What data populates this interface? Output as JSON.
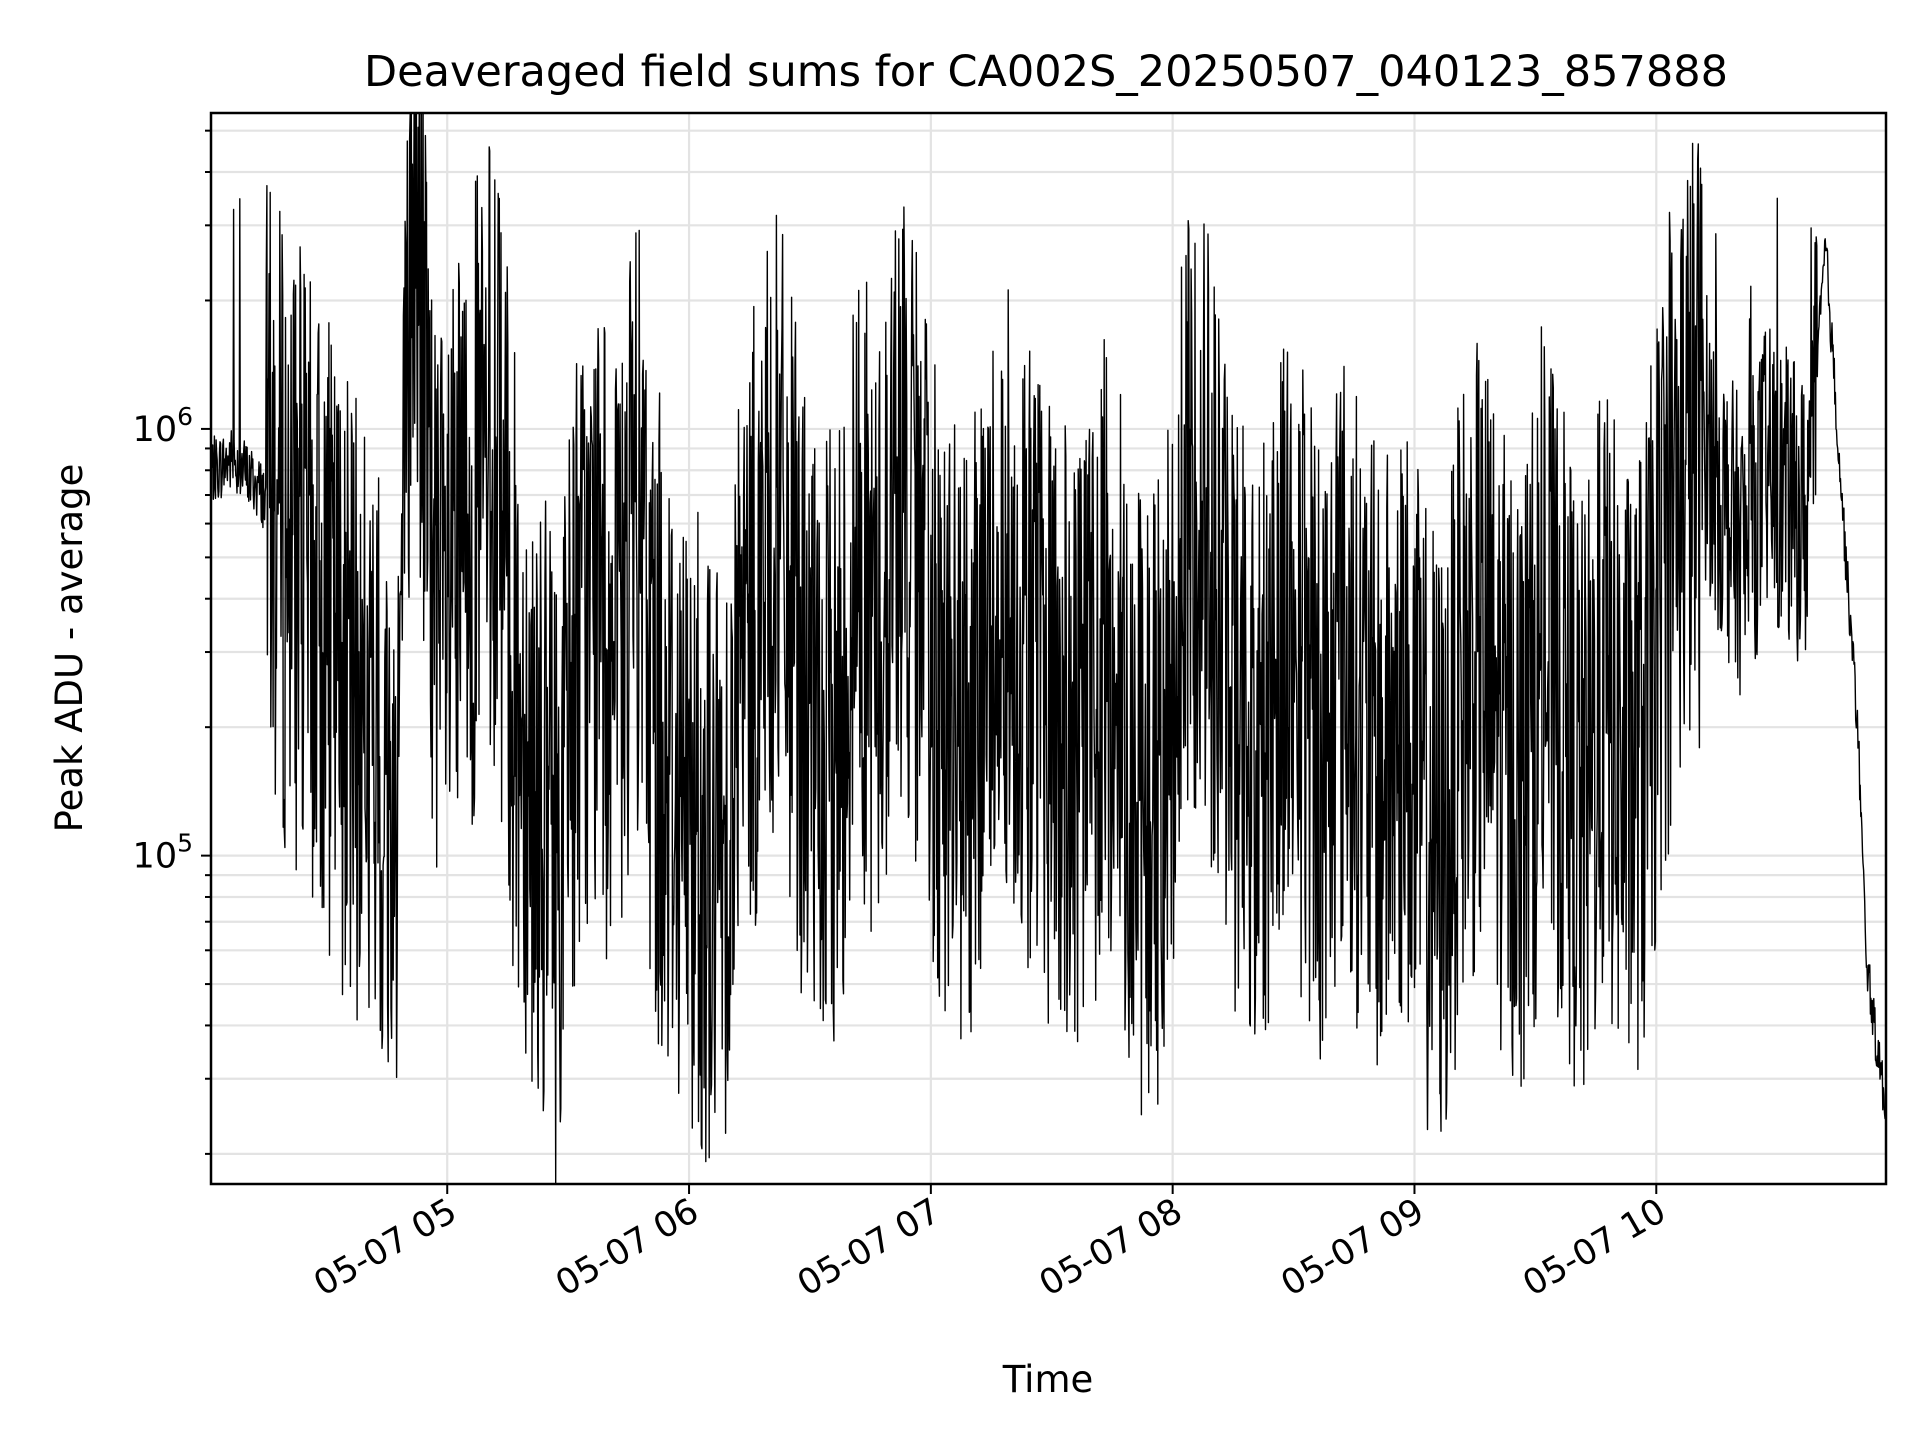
{
  "chart_data": {
    "type": "line",
    "title": "Deaveraged field sums for CA002S_20250507_040123_857888",
    "xlabel": "Time",
    "ylabel": "Peak ADU - average",
    "x_scale": "time",
    "y_scale": "log",
    "xlim": [
      "2025-05-07 04:01:23",
      "2025-05-07 10:57:00"
    ],
    "ylim": [
      17000,
      5500000
    ],
    "x_ticks": [
      "05-07 05",
      "05-07 06",
      "05-07 07",
      "05-07 08",
      "05-07 09",
      "05-07 10"
    ],
    "x_tick_times": [
      "2025-05-07 05:00",
      "2025-05-07 06:00",
      "2025-05-07 07:00",
      "2025-05-07 08:00",
      "2025-05-07 09:00",
      "2025-05-07 10:00"
    ],
    "y_ticks": [
      {
        "base": "10",
        "exp": "5",
        "value": 100000
      },
      {
        "base": "10",
        "exp": "6",
        "value": 1000000
      }
    ],
    "grid": true,
    "legend": "none",
    "line_color": "#000000",
    "series": [
      {
        "x": [
          "04:02",
          "04:07",
          "04:12",
          "04:17",
          "04:22",
          "04:27",
          "04:32",
          "04:37",
          "04:42",
          "04:47",
          "04:52",
          "04:57",
          "05:02",
          "05:07",
          "05:12",
          "05:17",
          "05:22",
          "05:27",
          "05:32",
          "05:37",
          "05:42",
          "05:47",
          "05:52",
          "05:57",
          "06:02",
          "06:07",
          "06:12",
          "06:17",
          "06:22",
          "06:27",
          "06:32",
          "06:37",
          "06:42",
          "06:47",
          "06:52",
          "06:57",
          "07:02",
          "07:07",
          "07:12",
          "07:17",
          "07:22",
          "07:27",
          "07:32",
          "07:37",
          "07:42",
          "07:47",
          "07:52",
          "07:57",
          "08:02",
          "08:07",
          "08:12",
          "08:17",
          "08:22",
          "08:27",
          "08:32",
          "08:37",
          "08:42",
          "08:47",
          "08:52",
          "08:57",
          "09:02",
          "09:07",
          "09:12",
          "09:17",
          "09:22",
          "09:27",
          "09:32",
          "09:37",
          "09:42",
          "09:47",
          "09:52",
          "09:57",
          "10:02",
          "10:07",
          "10:12",
          "10:17",
          "10:22",
          "10:27",
          "10:32",
          "10:37",
          "10:42",
          "10:47",
          "10:50",
          "10:52",
          "10:54",
          "10:56",
          "10:57"
        ],
        "y": [
          800000,
          850000,
          750000,
          650000,
          500000,
          380000,
          300000,
          220000,
          150000,
          120000,
          4200000,
          300000,
          400000,
          700000,
          900000,
          250000,
          150000,
          95000,
          300000,
          400000,
          250000,
          600000,
          200000,
          150000,
          120000,
          90000,
          200000,
          400000,
          600000,
          300000,
          150000,
          200000,
          500000,
          300000,
          800000,
          400000,
          250000,
          180000,
          200000,
          500000,
          350000,
          250000,
          200000,
          150000,
          300000,
          250000,
          130000,
          150000,
          450000,
          800000,
          350000,
          200000,
          150000,
          400000,
          250000,
          180000,
          300000,
          200000,
          150000,
          220000,
          130000,
          100000,
          250000,
          300000,
          180000,
          150000,
          300000,
          200000,
          120000,
          250000,
          150000,
          180000,
          500000,
          900000,
          1000000,
          650000,
          500000,
          800000,
          700000,
          600000,
          2700000,
          500000,
          200000,
          60000,
          40000,
          30000,
          22000
        ]
      }
    ]
  }
}
